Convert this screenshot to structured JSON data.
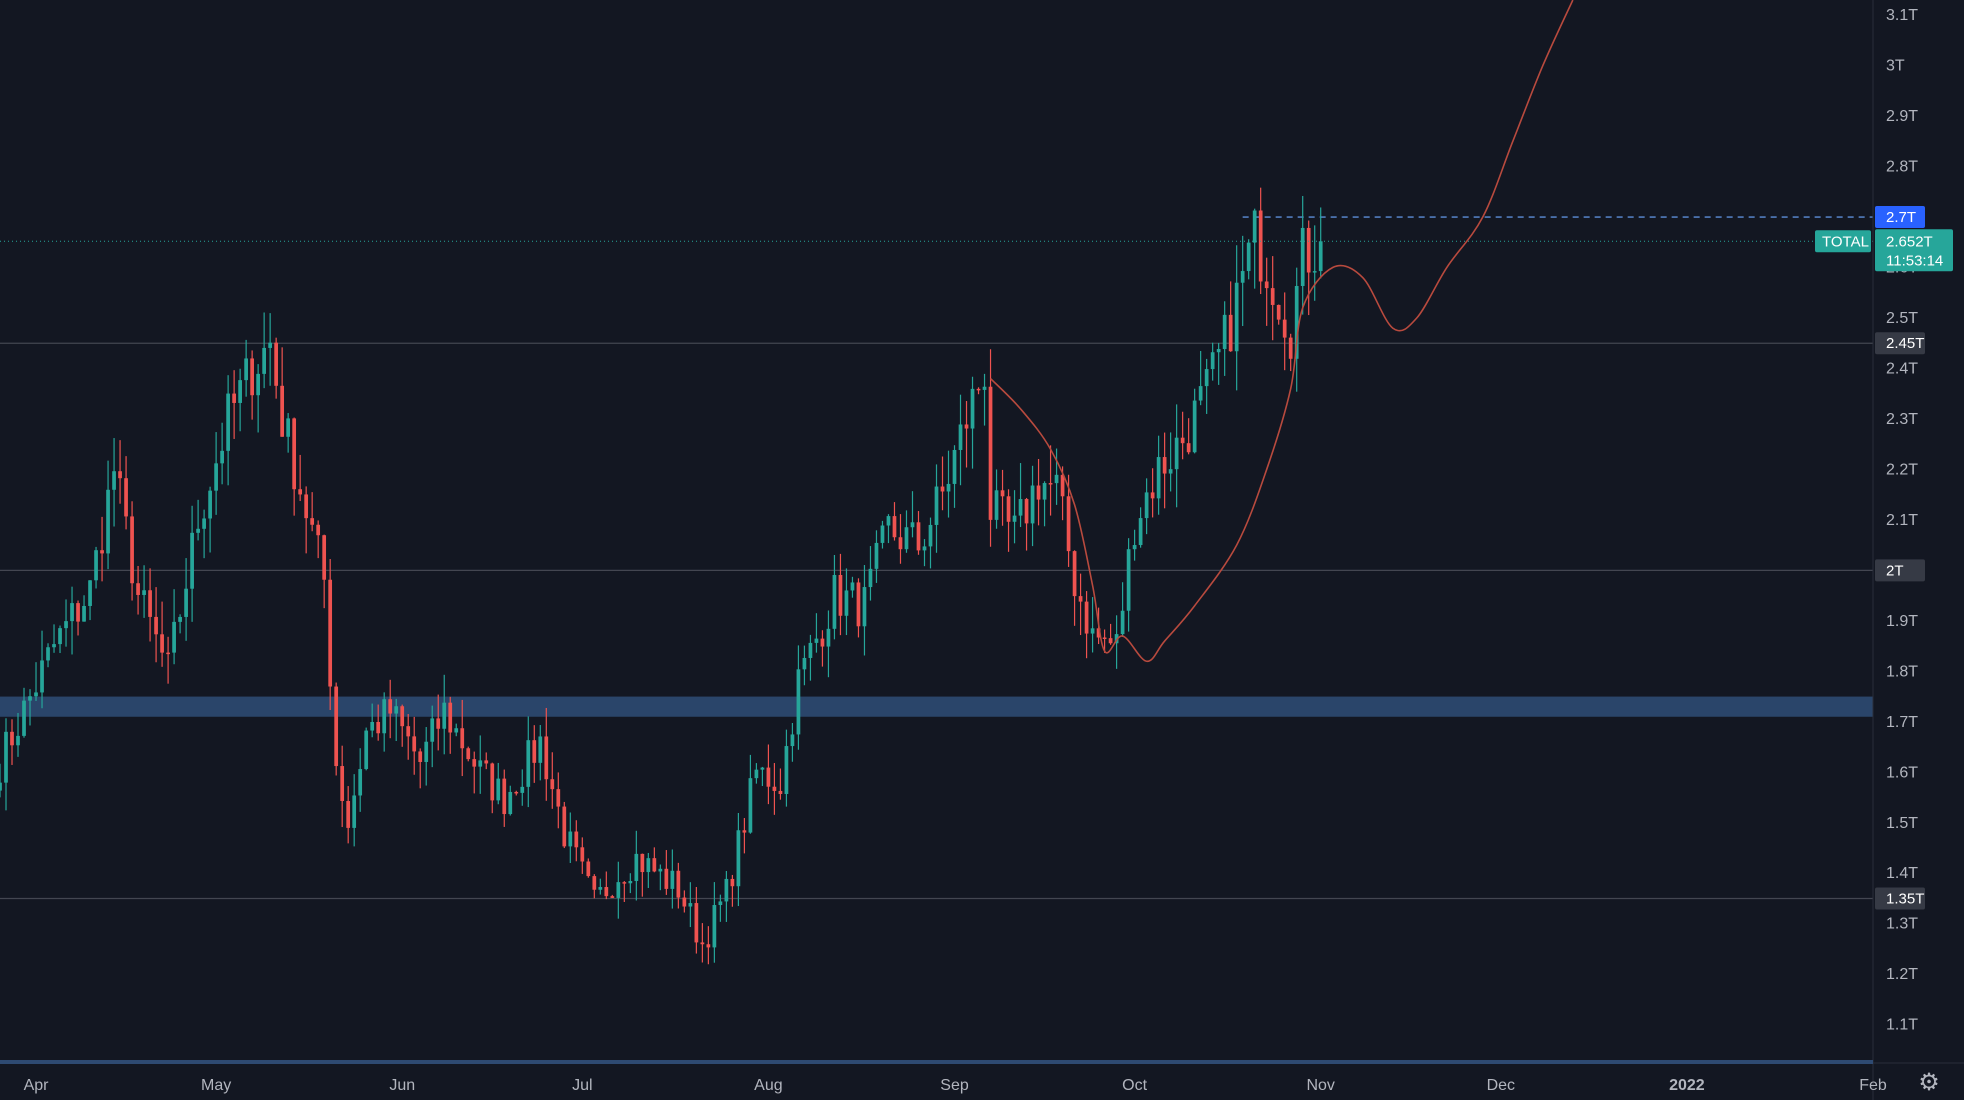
{
  "chart_data": {
    "type": "candlestick",
    "symbol": "TOTAL",
    "last_price": "2.652T",
    "countdown": "11:53:14",
    "y_axis_labels": [
      "3.1T",
      "3T",
      "2.9T",
      "2.8T",
      "2.6T",
      "2.5T",
      "2.4T",
      "2.3T",
      "2.2T",
      "2.1T",
      "1.9T",
      "1.8T",
      "1.7T",
      "1.6T",
      "1.5T",
      "1.4T",
      "1.3T",
      "1.2T",
      "1.1T"
    ],
    "y_axis_values": [
      3.1,
      3.0,
      2.9,
      2.8,
      2.6,
      2.5,
      2.4,
      2.3,
      2.2,
      2.1,
      1.9,
      1.8,
      1.7,
      1.6,
      1.5,
      1.4,
      1.3,
      1.2,
      1.1
    ],
    "ylim": [
      1.03,
      3.13
    ],
    "x_axis_labels": [
      "Apr",
      "May",
      "Jun",
      "Jul",
      "Aug",
      "Sep",
      "Oct",
      "Nov",
      "Dec",
      "2022",
      "Feb"
    ],
    "x_axis_dates": [
      "2021-04-01",
      "2021-05-01",
      "2021-06-01",
      "2021-07-01",
      "2021-08-01",
      "2021-09-01",
      "2021-10-01",
      "2021-11-01",
      "2021-12-01",
      "2022-01-01",
      "2022-02-01"
    ],
    "xlim": [
      "2021-03-26",
      "2022-02-01"
    ],
    "horizontal_levels": [
      {
        "label": "2.45T",
        "value": 2.45,
        "style": "solid"
      },
      {
        "label": "2T",
        "value": 2.0,
        "style": "solid"
      },
      {
        "label": "1.35T",
        "value": 1.35,
        "style": "solid"
      },
      {
        "label": "2.7T",
        "value": 2.7,
        "style": "dashed",
        "start": "2021-10-19"
      }
    ],
    "support_zone": {
      "low": 1.71,
      "high": 1.75
    },
    "keypoints": [
      [
        "2021-03-26",
        1.62
      ],
      [
        "2021-04-04",
        1.85
      ],
      [
        "2021-04-10",
        1.96
      ],
      [
        "2021-04-14",
        2.2
      ],
      [
        "2021-04-18",
        1.95
      ],
      [
        "2021-04-23",
        1.8
      ],
      [
        "2021-04-28",
        2.1
      ],
      [
        "2021-05-03",
        2.3
      ],
      [
        "2021-05-07",
        2.4
      ],
      [
        "2021-05-10",
        2.45
      ],
      [
        "2021-05-12",
        2.3
      ],
      [
        "2021-05-16",
        2.12
      ],
      [
        "2021-05-19",
        1.98
      ],
      [
        "2021-05-21",
        1.62
      ],
      [
        "2021-05-23",
        1.5
      ],
      [
        "2021-05-26",
        1.68
      ],
      [
        "2021-05-30",
        1.72
      ],
      [
        "2021-06-04",
        1.62
      ],
      [
        "2021-06-08",
        1.72
      ],
      [
        "2021-06-14",
        1.6
      ],
      [
        "2021-06-18",
        1.55
      ],
      [
        "2021-06-24",
        1.66
      ],
      [
        "2021-06-28",
        1.48
      ],
      [
        "2021-07-03",
        1.34
      ],
      [
        "2021-07-07",
        1.4
      ],
      [
        "2021-07-10",
        1.43
      ],
      [
        "2021-07-17",
        1.37
      ],
      [
        "2021-07-21",
        1.26
      ],
      [
        "2021-07-25",
        1.36
      ],
      [
        "2021-07-30",
        1.6
      ],
      [
        "2021-08-03",
        1.58
      ],
      [
        "2021-08-06",
        1.78
      ],
      [
        "2021-08-12",
        1.95
      ],
      [
        "2021-08-17",
        1.93
      ],
      [
        "2021-08-21",
        2.08
      ],
      [
        "2021-08-26",
        2.05
      ],
      [
        "2021-08-30",
        2.15
      ],
      [
        "2021-09-03",
        2.3
      ],
      [
        "2021-09-06",
        2.4
      ],
      [
        "2021-09-07",
        2.12
      ],
      [
        "2021-09-11",
        2.07
      ],
      [
        "2021-09-15",
        2.18
      ],
      [
        "2021-09-18",
        2.16
      ],
      [
        "2021-09-21",
        1.98
      ],
      [
        "2021-09-24",
        1.87
      ],
      [
        "2021-09-28",
        1.85
      ],
      [
        "2021-10-01",
        2.1
      ],
      [
        "2021-10-05",
        2.2
      ],
      [
        "2021-10-09",
        2.26
      ],
      [
        "2021-10-13",
        2.35
      ],
      [
        "2021-10-16",
        2.45
      ],
      [
        "2021-10-19",
        2.58
      ],
      [
        "2021-10-21",
        2.66
      ],
      [
        "2021-10-24",
        2.58
      ],
      [
        "2021-10-27",
        2.48
      ],
      [
        "2021-10-29",
        2.62
      ],
      [
        "2021-11-01",
        2.652
      ]
    ],
    "forecast_path": [
      [
        "2021-09-07",
        2.38
      ],
      [
        "2021-09-12",
        2.32
      ],
      [
        "2021-09-17",
        2.24
      ],
      [
        "2021-09-21",
        2.13
      ],
      [
        "2021-09-24",
        1.97
      ],
      [
        "2021-09-26",
        1.84
      ],
      [
        "2021-09-29",
        1.87
      ],
      [
        "2021-10-03",
        1.82
      ],
      [
        "2021-10-06",
        1.86
      ],
      [
        "2021-10-11",
        1.93
      ],
      [
        "2021-10-18",
        2.05
      ],
      [
        "2021-10-23",
        2.2
      ],
      [
        "2021-10-27",
        2.36
      ],
      [
        "2021-10-29",
        2.52
      ],
      [
        "2021-11-03",
        2.6
      ],
      [
        "2021-11-08",
        2.58
      ],
      [
        "2021-11-13",
        2.48
      ],
      [
        "2021-11-17",
        2.5
      ],
      [
        "2021-11-22",
        2.6
      ],
      [
        "2021-11-28",
        2.7
      ],
      [
        "2021-12-03",
        2.85
      ],
      [
        "2021-12-08",
        3.0
      ],
      [
        "2021-12-13",
        3.13
      ]
    ],
    "colors": {
      "background": "#131722",
      "up": "#26a69a",
      "down": "#ef5350",
      "grid_level": "#434651",
      "zone": "#2e4a72",
      "forecast": "#b84a3e",
      "dashed": "#5d8ed9",
      "badge_blue": "#2962ff",
      "badge_gray": "#363a45",
      "badge_teal": "#26a69a",
      "axis_text": "#b2b5be"
    },
    "grid": false
  }
}
